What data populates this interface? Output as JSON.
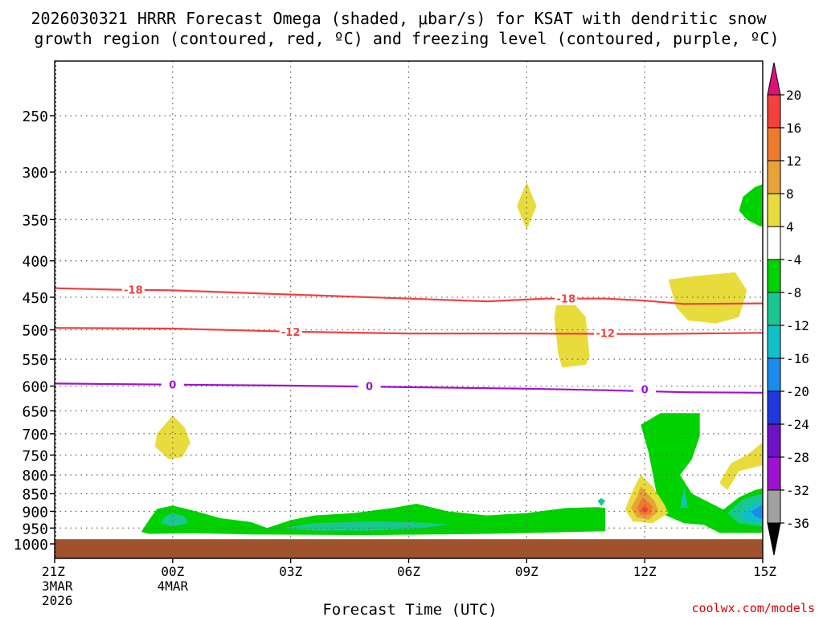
{
  "chart_data": {
    "type": "heatmap",
    "title_line1": "2026030321 HRRR Forecast Omega (shaded, μbar/s) for KSAT with dendritic snow",
    "title_line2": "growth region (contoured, red, ºC) and freezing level (contoured, purple, ºC)",
    "xlabel": "Forecast Time (UTC)",
    "credit": "coolwx.com/models",
    "x_range_hours": [
      0,
      18
    ],
    "y_range_hpa": [
      1000,
      200
    ],
    "x_ticks": [
      {
        "h": 0,
        "label": "21Z",
        "date": "3MAR",
        "year": "2026"
      },
      {
        "h": 3,
        "label": "00Z",
        "date": "4MAR",
        "year": ""
      },
      {
        "h": 6,
        "label": "03Z",
        "date": "",
        "year": ""
      },
      {
        "h": 9,
        "label": "06Z",
        "date": "",
        "year": ""
      },
      {
        "h": 12,
        "label": "09Z",
        "date": "",
        "year": ""
      },
      {
        "h": 15,
        "label": "12Z",
        "date": "",
        "year": ""
      },
      {
        "h": 18,
        "label": "15Z",
        "date": "",
        "year": ""
      }
    ],
    "y_ticks": [
      {
        "p": 250,
        "label": "250"
      },
      {
        "p": 300,
        "label": "300"
      },
      {
        "p": 350,
        "label": "350"
      },
      {
        "p": 400,
        "label": "400"
      },
      {
        "p": 450,
        "label": "450"
      },
      {
        "p": 500,
        "label": "500"
      },
      {
        "p": 550,
        "label": "550"
      },
      {
        "p": 600,
        "label": "600"
      },
      {
        "p": 650,
        "label": "650"
      },
      {
        "p": 700,
        "label": "700"
      },
      {
        "p": 750,
        "label": "750"
      },
      {
        "p": 800,
        "label": "800"
      },
      {
        "p": 850,
        "label": "850"
      },
      {
        "p": 900,
        "label": "900"
      },
      {
        "p": 950,
        "label": "950"
      },
      {
        "p": 1000,
        "label": "1000"
      }
    ],
    "colorbar": {
      "labels_top_to_bottom": [
        "20",
        "16",
        "12",
        "8",
        "4",
        "-4",
        "-8",
        "-12",
        "-16",
        "-20",
        "-24",
        "-28",
        "-32",
        "-36"
      ],
      "top_arrow_color": "#e0107a",
      "bins_top_to_bottom": [
        {
          "range": "16 to 20",
          "color": "#f5403c"
        },
        {
          "range": "12 to 16",
          "color": "#f07a2c"
        },
        {
          "range": "8 to 12",
          "color": "#e8a23a"
        },
        {
          "range": "4 to 8",
          "color": "#e8dc3c"
        },
        {
          "range": "-4 to 4",
          "color": "#ffffff"
        },
        {
          "range": "-8 to -4",
          "color": "#00d200"
        },
        {
          "range": "-12 to -8",
          "color": "#18c890"
        },
        {
          "range": "-16 to -12",
          "color": "#10c0c8"
        },
        {
          "range": "-20 to -16",
          "color": "#1a8cf0"
        },
        {
          "range": "-24 to -20",
          "color": "#2038e0"
        },
        {
          "range": "-28 to -24",
          "color": "#7010c8"
        },
        {
          "range": "-32 to -28",
          "color": "#a010d0"
        },
        {
          "range": "-36 to -32",
          "color": "#a0a0a0"
        }
      ],
      "bottom_arrow_color": "#000000"
    },
    "ground": {
      "top_hpa": 985,
      "color": "#a0522d"
    },
    "contours": [
      {
        "name": "dgz-minus18",
        "value": -18,
        "label": "-18",
        "color": "#f04040",
        "points": [
          [
            0,
            437
          ],
          [
            1.5,
            439
          ],
          [
            3,
            440
          ],
          [
            6,
            446
          ],
          [
            9,
            452
          ],
          [
            11,
            456
          ],
          [
            12.5,
            452
          ],
          [
            14,
            452
          ],
          [
            15,
            455
          ],
          [
            16,
            460
          ],
          [
            18,
            459
          ]
        ],
        "label_positions": [
          [
            2,
            439
          ],
          [
            13,
            452
          ]
        ]
      },
      {
        "name": "dgz-minus12",
        "value": -12,
        "label": "-12",
        "color": "#f04040",
        "points": [
          [
            0,
            497
          ],
          [
            3,
            498
          ],
          [
            6,
            503
          ],
          [
            9,
            506
          ],
          [
            12,
            506
          ],
          [
            15,
            507
          ],
          [
            18,
            505
          ]
        ],
        "label_positions": [
          [
            6,
            503
          ],
          [
            14,
            505
          ]
        ]
      },
      {
        "name": "freezing-level",
        "value": 0,
        "label": "0",
        "color": "#a010d0",
        "points": [
          [
            0,
            595
          ],
          [
            3,
            597
          ],
          [
            6,
            599
          ],
          [
            9,
            602
          ],
          [
            12,
            605
          ],
          [
            14,
            608
          ],
          [
            16,
            612
          ],
          [
            18,
            613
          ]
        ],
        "label_positions": [
          [
            3,
            597
          ],
          [
            8,
            600
          ],
          [
            15,
            606
          ]
        ]
      }
    ],
    "shaded_regions": [
      {
        "name": "sfc-ascent-green",
        "value_bin": "-8 to -4",
        "color": "#00d200",
        "points": [
          [
            2.2,
            962
          ],
          [
            2.4,
            925
          ],
          [
            2.6,
            893
          ],
          [
            3.0,
            883
          ],
          [
            3.6,
            900
          ],
          [
            4.2,
            920
          ],
          [
            5.0,
            932
          ],
          [
            5.4,
            950
          ],
          [
            6.0,
            926
          ],
          [
            6.6,
            912
          ],
          [
            7.6,
            905
          ],
          [
            8.6,
            890
          ],
          [
            9.2,
            878
          ],
          [
            10.0,
            900
          ],
          [
            11.0,
            912
          ],
          [
            12.0,
            905
          ],
          [
            13.0,
            890
          ],
          [
            13.8,
            888
          ],
          [
            14.0,
            890
          ],
          [
            14.0,
            960
          ],
          [
            11.0,
            968
          ],
          [
            8.0,
            972
          ],
          [
            5.0,
            970
          ],
          [
            3.5,
            966
          ],
          [
            2.4,
            968
          ]
        ]
      },
      {
        "name": "sfc-ascent-teal-left",
        "value_bin": "-12 to -8",
        "color": "#18c890",
        "points": [
          [
            2.7,
            935
          ],
          [
            2.8,
            915
          ],
          [
            3.0,
            905
          ],
          [
            3.3,
            915
          ],
          [
            3.4,
            935
          ],
          [
            3.0,
            945
          ]
        ]
      },
      {
        "name": "sfc-ascent-teal-mid",
        "value_bin": "-12 to -8",
        "color": "#18c890",
        "points": [
          [
            5.8,
            950
          ],
          [
            6.6,
            935
          ],
          [
            8.0,
            930
          ],
          [
            9.0,
            932
          ],
          [
            10.0,
            938
          ],
          [
            9.4,
            950
          ],
          [
            8.0,
            958
          ],
          [
            6.6,
            958
          ]
        ]
      },
      {
        "name": "sfc-ascent-teal-small",
        "value_bin": "-12 to -8",
        "color": "#18c890",
        "points": [
          [
            13.8,
            870
          ],
          [
            13.9,
            862
          ],
          [
            14.0,
            870
          ],
          [
            13.9,
            885
          ]
        ]
      },
      {
        "name": "right-ascent-green",
        "value_bin": "-8 to -4",
        "color": "#00d200",
        "points": [
          [
            15.4,
            655
          ],
          [
            16.4,
            655
          ],
          [
            16.4,
            705
          ],
          [
            16.2,
            760
          ],
          [
            15.9,
            800
          ],
          [
            16.2,
            850
          ],
          [
            17.0,
            895
          ],
          [
            17.4,
            860
          ],
          [
            17.8,
            840
          ],
          [
            18.0,
            835
          ],
          [
            18.0,
            965
          ],
          [
            16.9,
            965
          ],
          [
            16.5,
            940
          ],
          [
            16.0,
            935
          ],
          [
            15.4,
            905
          ],
          [
            15.3,
            850
          ],
          [
            15.1,
            745
          ],
          [
            14.9,
            680
          ]
        ]
      },
      {
        "name": "right-ascent-teal",
        "value_bin": "-12 to -8",
        "color": "#18c890",
        "points": [
          [
            17.1,
            905
          ],
          [
            17.5,
            865
          ],
          [
            18.0,
            850
          ],
          [
            18.0,
            945
          ],
          [
            17.4,
            935
          ]
        ]
      },
      {
        "name": "right-ascent-cyan",
        "value_bin": "-16 to -12",
        "color": "#10c0c8",
        "points": [
          [
            17.4,
            910
          ],
          [
            17.8,
            875
          ],
          [
            18.0,
            870
          ],
          [
            18.0,
            935
          ],
          [
            17.6,
            928
          ]
        ]
      },
      {
        "name": "right-ascent-blue",
        "value_bin": "-20 to -16",
        "color": "#1a8cf0",
        "points": [
          [
            17.7,
            900
          ],
          [
            18.0,
            880
          ],
          [
            18.0,
            925
          ],
          [
            17.8,
            915
          ]
        ]
      },
      {
        "name": "right-ascent-teal-2",
        "value_bin": "-12 to -8",
        "color": "#18c890",
        "points": [
          [
            15.9,
            890
          ],
          [
            16.0,
            830
          ],
          [
            16.1,
            890
          ]
        ]
      },
      {
        "name": "right-ascent-cyan-2",
        "value_bin": "-16 to -12",
        "color": "#10c0c8",
        "points": [
          [
            15.95,
            875
          ],
          [
            16.0,
            848
          ],
          [
            16.05,
            875
          ]
        ]
      },
      {
        "name": "upper-green",
        "value_bin": "-8 to -4",
        "color": "#00d200",
        "points": [
          [
            18.0,
            312
          ],
          [
            17.8,
            315
          ],
          [
            17.5,
            325
          ],
          [
            17.4,
            340
          ],
          [
            17.6,
            350
          ],
          [
            17.9,
            357
          ],
          [
            18.0,
            358
          ]
        ]
      },
      {
        "name": "descent-upper-yellow",
        "value_bin": "4 to 8",
        "color": "#e8dc3c",
        "points": [
          [
            12.0,
            310
          ],
          [
            12.25,
            335
          ],
          [
            12.0,
            362
          ],
          [
            11.75,
            335
          ]
        ]
      },
      {
        "name": "descent-dgz-yellow",
        "value_bin": "4 to 8",
        "color": "#e8dc3c",
        "points": [
          [
            12.8,
            445
          ],
          [
            13.1,
            452
          ],
          [
            13.5,
            480
          ],
          [
            13.6,
            545
          ],
          [
            13.5,
            560
          ],
          [
            12.9,
            565
          ],
          [
            12.8,
            540
          ],
          [
            12.7,
            480
          ]
        ]
      },
      {
        "name": "descent-right-yellow",
        "value_bin": "4 to 8",
        "color": "#e8dc3c",
        "points": [
          [
            15.6,
            425
          ],
          [
            16.3,
            420
          ],
          [
            17.3,
            415
          ],
          [
            17.6,
            440
          ],
          [
            17.4,
            480
          ],
          [
            16.8,
            490
          ],
          [
            16.1,
            485
          ],
          [
            15.8,
            465
          ]
        ]
      },
      {
        "name": "descent-left-yellow",
        "value_bin": "4 to 8",
        "color": "#e8dc3c",
        "points": [
          [
            3.0,
            660
          ],
          [
            3.3,
            685
          ],
          [
            3.45,
            720
          ],
          [
            3.25,
            755
          ],
          [
            2.9,
            760
          ],
          [
            2.55,
            730
          ],
          [
            2.6,
            700
          ]
        ]
      },
      {
        "name": "descent-lowright-yellow",
        "value_bin": "4 to 8",
        "color": "#e8dc3c",
        "points": [
          [
            16.9,
            820
          ],
          [
            17.2,
            770
          ],
          [
            17.6,
            750
          ],
          [
            18.0,
            720
          ],
          [
            18.0,
            775
          ],
          [
            17.4,
            790
          ],
          [
            17.1,
            840
          ]
        ]
      },
      {
        "name": "descent-12z-yellow",
        "value_bin": "4 to 8",
        "color": "#e8dc3c",
        "points": [
          [
            14.9,
            800
          ],
          [
            15.2,
            830
          ],
          [
            15.5,
            880
          ],
          [
            15.6,
            905
          ],
          [
            15.2,
            935
          ],
          [
            14.7,
            930
          ],
          [
            14.5,
            895
          ],
          [
            14.7,
            840
          ]
        ]
      },
      {
        "name": "descent-12z-amber",
        "value_bin": "8 to 12",
        "color": "#e8a23a",
        "points": [
          [
            14.9,
            830
          ],
          [
            15.25,
            870
          ],
          [
            15.35,
            900
          ],
          [
            15.1,
            925
          ],
          [
            14.8,
            918
          ],
          [
            14.65,
            890
          ],
          [
            14.8,
            860
          ]
        ]
      },
      {
        "name": "descent-12z-orange",
        "value_bin": "12 to 16",
        "color": "#f07a2c",
        "points": [
          [
            14.95,
            860
          ],
          [
            15.2,
            885
          ],
          [
            15.15,
            910
          ],
          [
            14.9,
            910
          ],
          [
            14.8,
            890
          ]
        ]
      },
      {
        "name": "descent-12z-red",
        "value_bin": "16 to 20",
        "color": "#f5403c",
        "points": [
          [
            15.0,
            885
          ],
          [
            15.1,
            895
          ],
          [
            15.0,
            905
          ],
          [
            14.9,
            895
          ]
        ]
      }
    ]
  }
}
